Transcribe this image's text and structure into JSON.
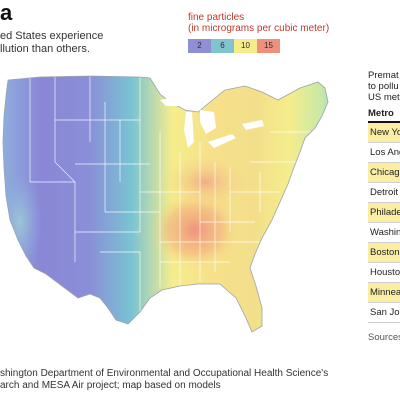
{
  "header": {
    "title": "a",
    "intro_line1": "ed States experience",
    "intro_line2": "llution than others."
  },
  "legend": {
    "title": "fine particles",
    "unit": "(in micrograms per cubic meter)",
    "bins": [
      {
        "label": "2",
        "color": "#8f8fd6"
      },
      {
        "label": "6",
        "color": "#7fc4cf"
      },
      {
        "label": "10",
        "color": "#f6ed8a"
      },
      {
        "label": "15",
        "color": "#ef8f7e"
      }
    ]
  },
  "map": {
    "palette": {
      "low": "#8a86d6",
      "midlow": "#79c3d3",
      "mid": "#f5ed8c",
      "high": "#ef8f7e",
      "border": "#ffffff"
    }
  },
  "source": {
    "line1": "shington Department of Environmental and Occupational Health Science's",
    "line2": "arch and MESA Air project; map based on models"
  },
  "sidebar": {
    "intro_line1": "Premat",
    "intro_line2": "to pollu",
    "intro_line3": "US met",
    "header": "Metro",
    "metros": [
      {
        "name": "New Yo",
        "highlight": true
      },
      {
        "name": "Los Ang",
        "highlight": false
      },
      {
        "name": "Chicago",
        "highlight": true
      },
      {
        "name": "Detroit",
        "highlight": false
      },
      {
        "name": "Philade",
        "highlight": true
      },
      {
        "name": "Washin",
        "highlight": false
      },
      {
        "name": "Boston",
        "highlight": true
      },
      {
        "name": "Housto",
        "highlight": false
      },
      {
        "name": "Minnea",
        "highlight": true
      },
      {
        "name": "San Jos",
        "highlight": false
      }
    ],
    "source_label": "Sources"
  }
}
